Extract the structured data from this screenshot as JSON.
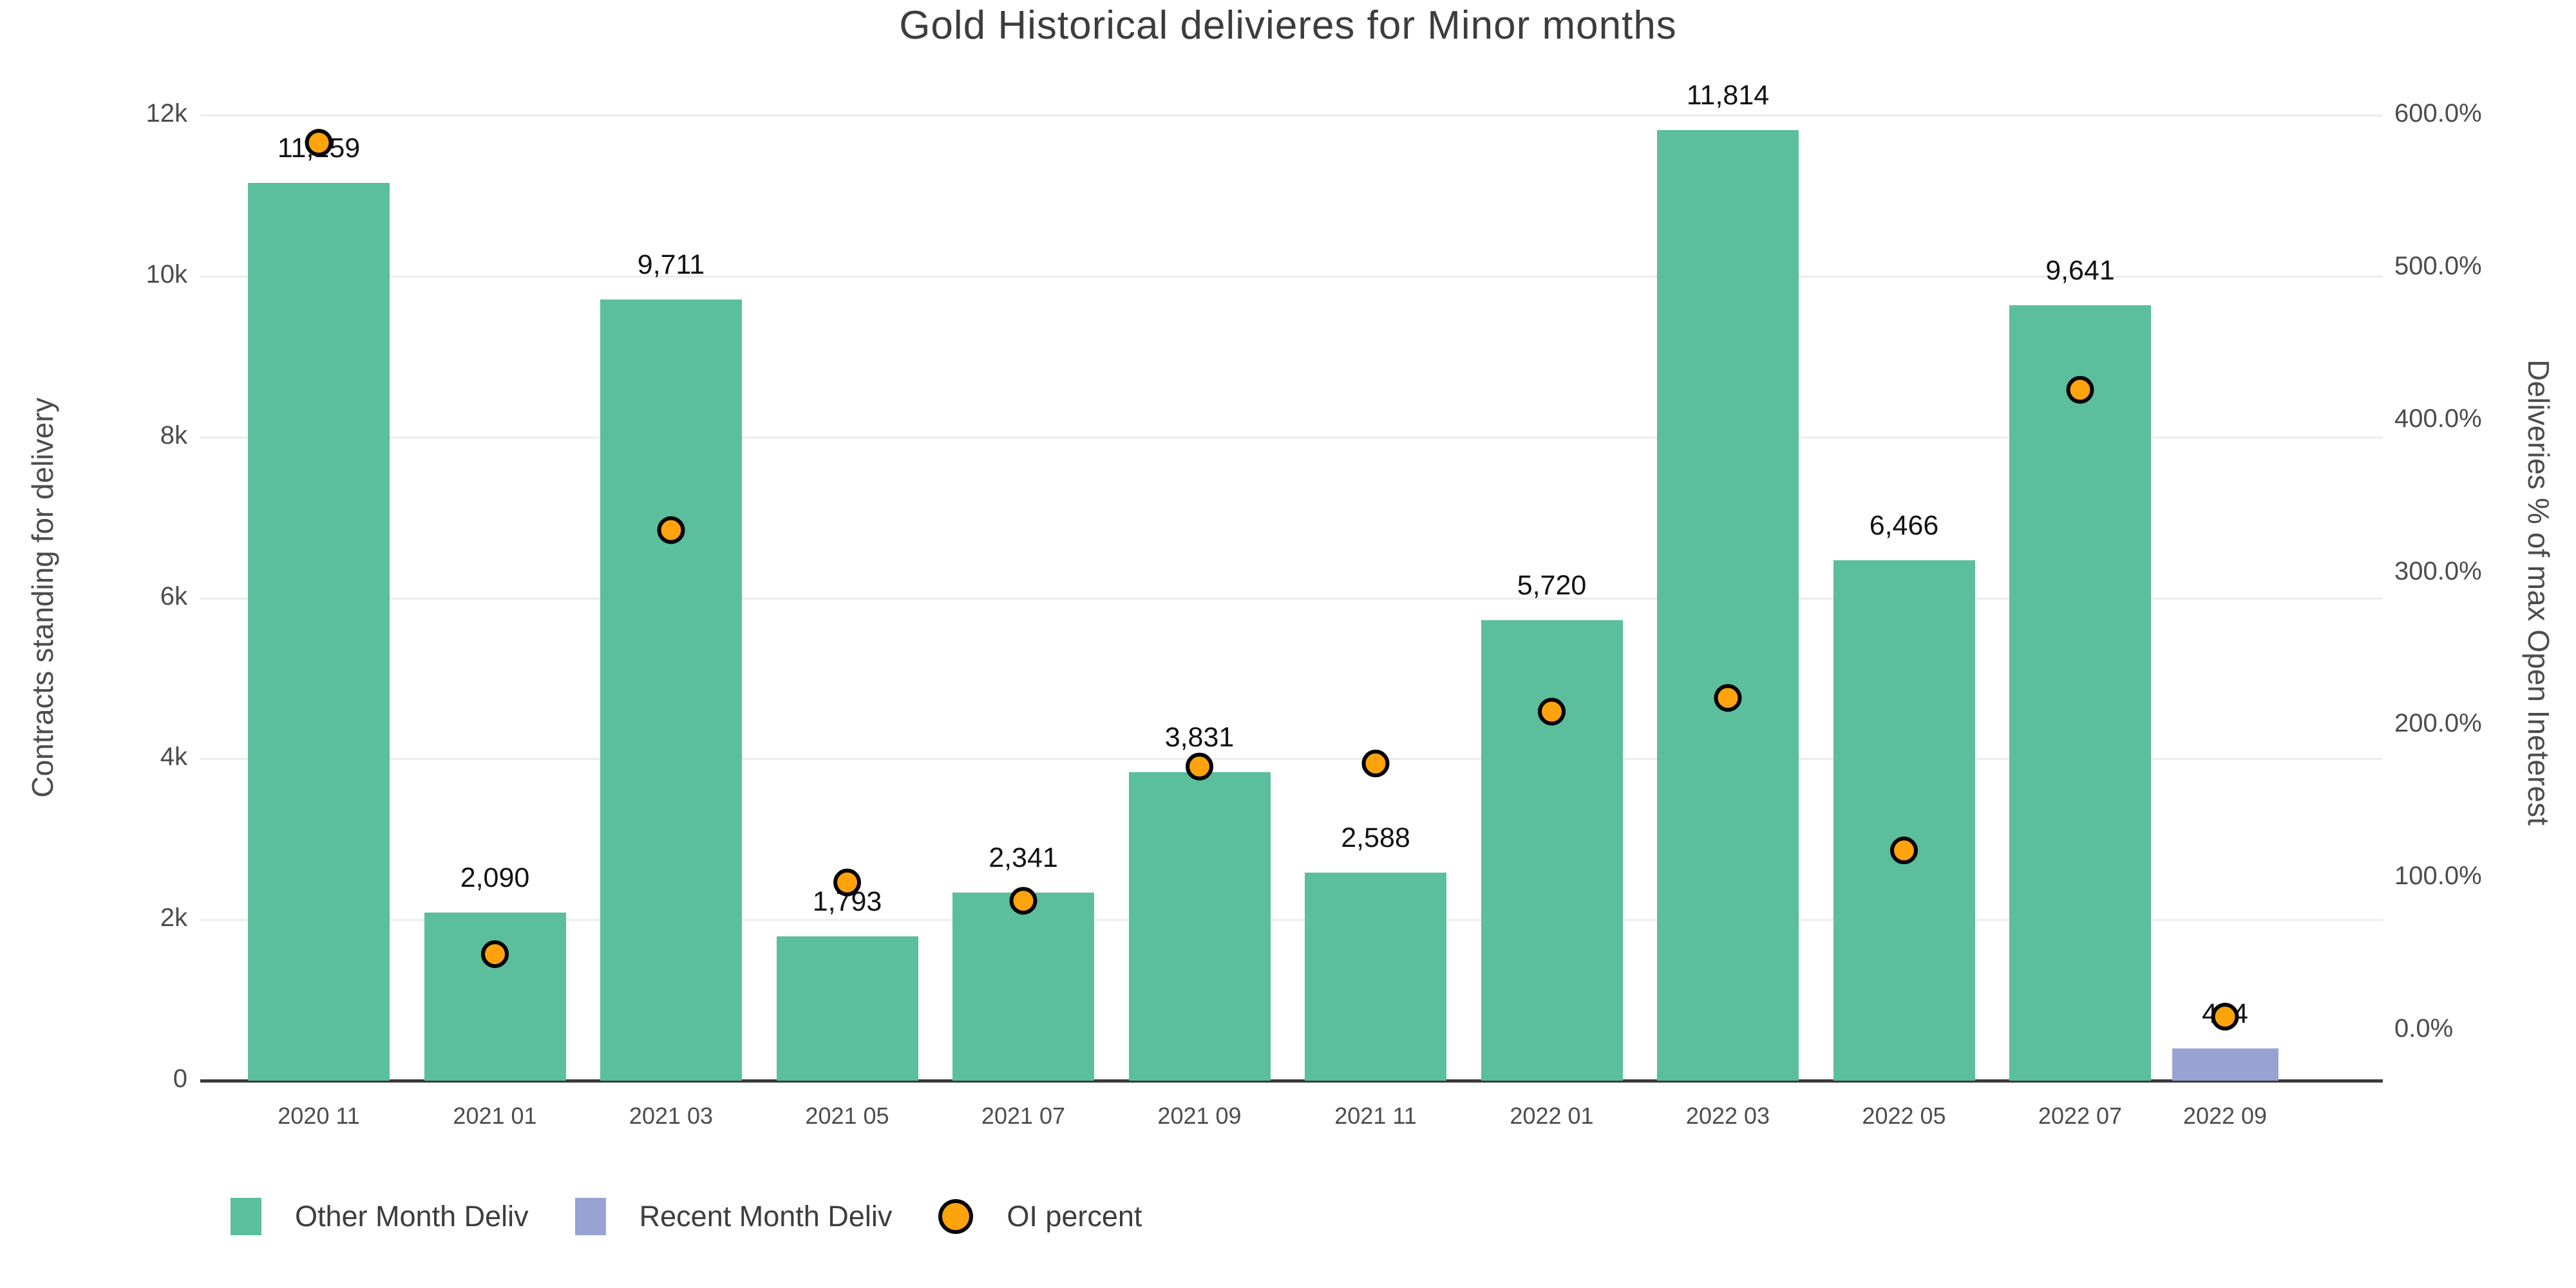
{
  "title": "Gold Historical delivieres for Minor months",
  "axes": {
    "left": {
      "title": "Contracts standing for delivery",
      "tick_labels": [
        "0",
        "2k",
        "4k",
        "6k",
        "8k",
        "10k",
        "12k"
      ],
      "tick_values": [
        0,
        2000,
        4000,
        6000,
        8000,
        10000,
        12000
      ]
    },
    "right": {
      "title": "Deliveries % of max Open Ineterest",
      "tick_labels": [
        "0.0%",
        "100.0%",
        "200.0%",
        "300.0%",
        "400.0%",
        "500.0%",
        "600.0%"
      ],
      "tick_values": [
        0,
        100,
        200,
        300,
        400,
        500,
        600
      ]
    }
  },
  "legend": [
    {
      "label": "Other Month Deliv",
      "type": "rect",
      "color": "#5bbe9d"
    },
    {
      "label": "Recent Month Deliv",
      "type": "rect",
      "color": "#98a3d3"
    },
    {
      "label": "OI percent",
      "type": "circle",
      "color": "#fea30b"
    }
  ],
  "colors": {
    "other_month": "#5bbe9d",
    "recent_month": "#98a3d3",
    "oi_marker_fill": "#fea30b",
    "oi_marker_stroke": "#000000",
    "gridline": "#ececec",
    "axis_line": "#3a3a3a",
    "text": "#4c4c4c"
  },
  "chart_data": {
    "type": "bar",
    "title": "Gold Historical delivieres for Minor months",
    "xlabel": "",
    "ylabel": "Contracts standing for delivery",
    "ylabel_right": "Deliveries % of max Open Ineterest",
    "ylim_left": [
      0,
      12000
    ],
    "ylim_right_ticks": [
      0,
      600
    ],
    "grid": "horizontal",
    "legend_position": "bottom-left",
    "categories": [
      "2020 11",
      "2021 01",
      "2021 03",
      "2021 05",
      "2021 07",
      "2021 09",
      "2021 11",
      "2022 01",
      "2022 03",
      "2022 05",
      "2022 07",
      "2022 09"
    ],
    "series": [
      {
        "name": "Other Month Deliv",
        "kind": "bar",
        "values": [
          11159,
          2090,
          9711,
          1793,
          2341,
          3831,
          2588,
          5720,
          11814,
          6466,
          9641,
          null
        ]
      },
      {
        "name": "Recent Month Deliv",
        "kind": "bar",
        "values": [
          null,
          null,
          null,
          null,
          null,
          null,
          null,
          null,
          null,
          null,
          null,
          404
        ]
      },
      {
        "name": "OI percent",
        "kind": "scatter",
        "axis": "right",
        "values_pct": [
          582,
          50,
          328,
          97,
          85,
          173,
          175,
          209,
          218,
          118,
          420,
          9
        ]
      }
    ],
    "bar_labels": [
      "11,159",
      "2,090",
      "9,711",
      "1,793",
      "2,341",
      "3,831",
      "2,588",
      "5,720",
      "11,814",
      "6,466",
      "9,641",
      "404"
    ]
  }
}
